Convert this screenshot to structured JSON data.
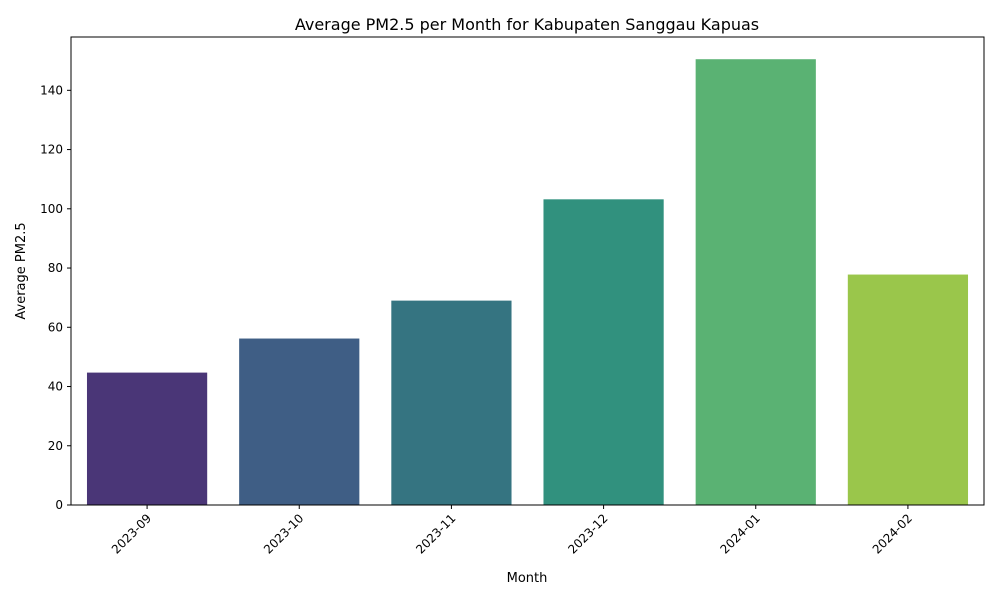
{
  "chart_data": {
    "type": "bar",
    "title": "Average PM2.5 per Month for Kabupaten Sanggau Kapuas",
    "xlabel": "Month",
    "ylabel": "Average PM2.5",
    "categories": [
      "2023-09",
      "2023-10",
      "2023-11",
      "2023-12",
      "2024-01",
      "2024-02"
    ],
    "values": [
      44.7,
      56.2,
      69.0,
      103.2,
      150.5,
      77.8
    ],
    "colors": [
      "#482878",
      "#3e4a89",
      "#31688e",
      "#26828e",
      "#1f9e89",
      "#35b779",
      "#6ece58",
      "#b5de2b"
    ],
    "bar_colors": [
      "#4a3677",
      "#3f5e85",
      "#357481",
      "#31917e",
      "#5ab273",
      "#9ac64b"
    ],
    "yticks": [
      0,
      20,
      40,
      60,
      80,
      100,
      120,
      140
    ],
    "ytick_labels": [
      "0",
      "20",
      "40",
      "60",
      "80",
      "100",
      "120",
      "140"
    ],
    "ylim": [
      0,
      158
    ],
    "xtick_rotation_deg": 45,
    "grid": false,
    "legend": "none"
  }
}
